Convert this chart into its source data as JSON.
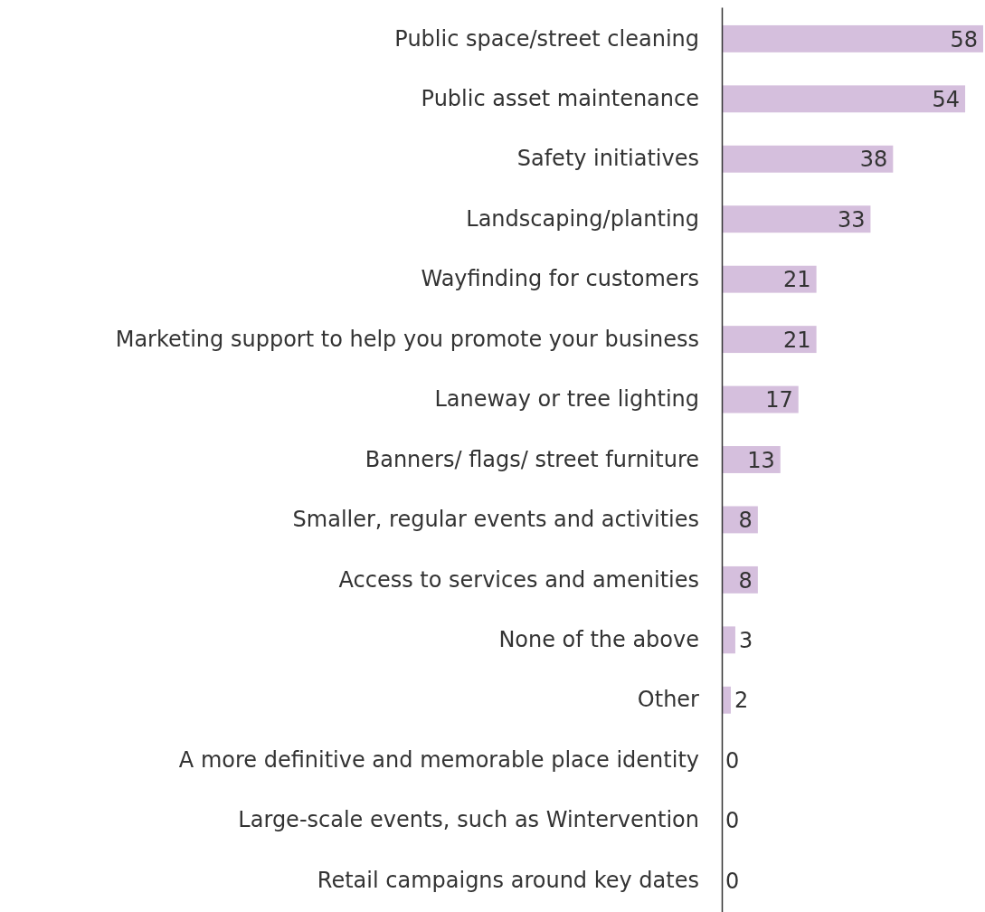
{
  "chart_data": {
    "type": "bar",
    "orientation": "horizontal",
    "categories": [
      "Public space/street cleaning",
      "Public asset maintenance",
      "Safety initiatives",
      "Landscaping/planting",
      "Wayfinding for customers",
      "Marketing support to help you promote your business",
      "Laneway or tree lighting",
      "Banners/ flags/ street furniture",
      "Smaller, regular events and activities",
      "Access to services and amenities",
      "None of the above",
      "Other",
      "A more definitive and memorable place identity",
      "Large-scale events, such as Wintervention",
      "Retail campaigns around key dates"
    ],
    "values": [
      58,
      54,
      38,
      33,
      21,
      21,
      17,
      13,
      8,
      8,
      3,
      2,
      0,
      0,
      0
    ],
    "color": "#d5bfdd",
    "xlim": [
      0,
      58
    ],
    "data_labels": true,
    "tick_labels": "y"
  }
}
